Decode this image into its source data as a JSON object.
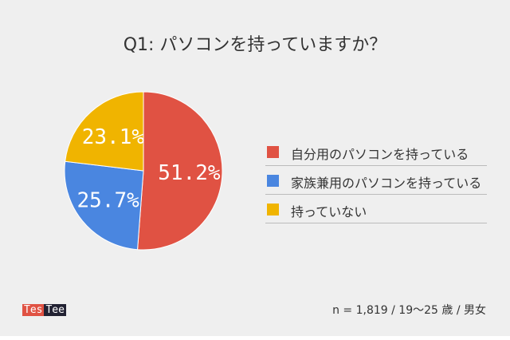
{
  "chart_data": {
    "type": "pie",
    "title": "Q1: パソコンを持っていますか？",
    "start": "top",
    "direction": "clockwise",
    "legend_position": "right",
    "slices": [
      {
        "label": "自分用のパソコンを持っている",
        "value": 51.2,
        "display": "51.2%",
        "color": "#e05243"
      },
      {
        "label": "家族兼用のパソコンを持っている",
        "value": 25.7,
        "display": "25.7%",
        "color": "#4a86e0"
      },
      {
        "label": "持っていない",
        "value": 23.1,
        "display": "23.1%",
        "color": "#f0b400"
      }
    ]
  },
  "footer": {
    "logo_left": "Tes",
    "logo_right": "Tee",
    "logo_colors": [
      "#e05243",
      "#222233"
    ],
    "note": "n = 1,819 / 19〜25 歳 / 男女"
  },
  "background": "#efefef"
}
